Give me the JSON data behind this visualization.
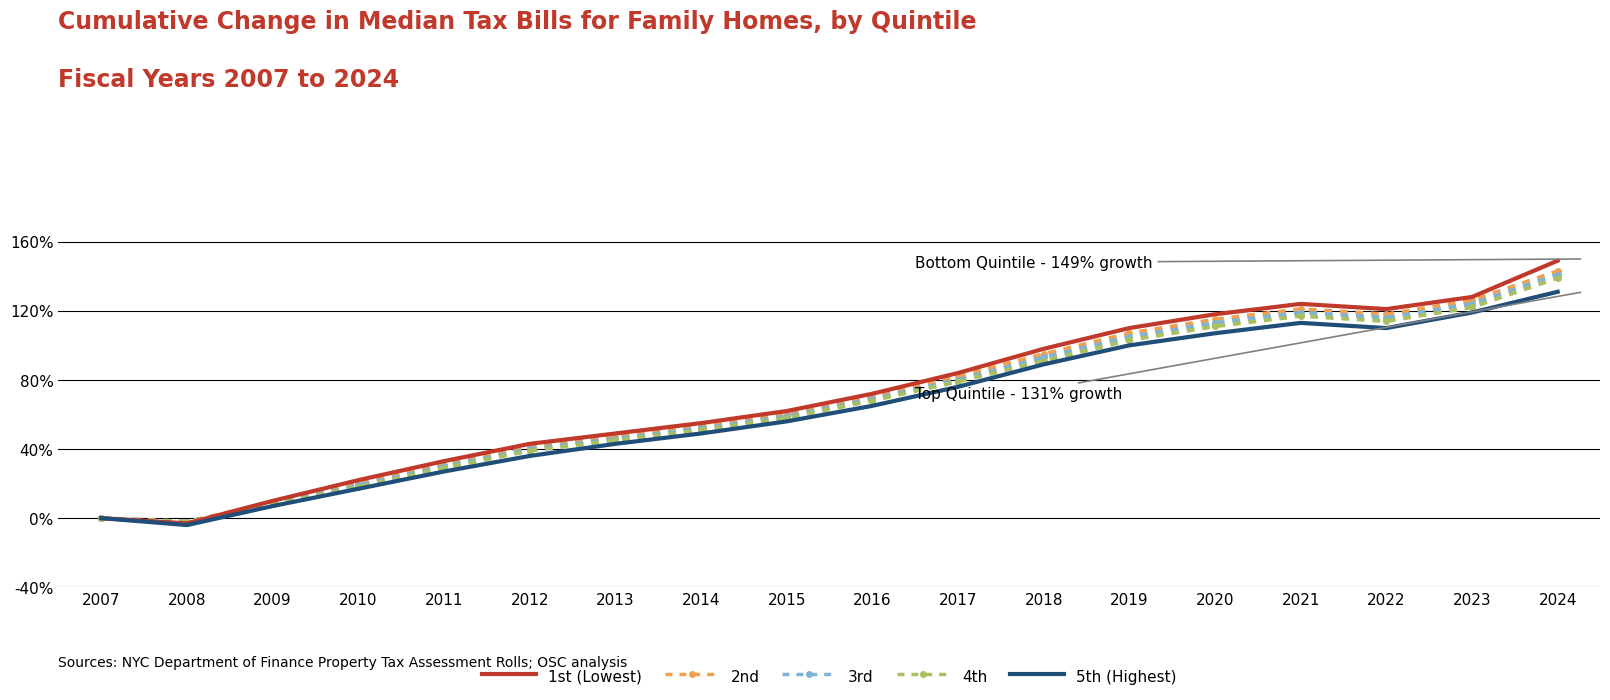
{
  "title_line1": "Cumulative Change in Median Tax Bills for Family Homes, by Quintile",
  "title_line2": "Fiscal Years 2007 to 2024",
  "title_color": "#c0392b",
  "source_text": "Sources: NYC Department of Finance Property Tax Assessment Rolls; OSC analysis",
  "years": [
    2007,
    2008,
    2009,
    2010,
    2011,
    2012,
    2013,
    2014,
    2015,
    2016,
    2017,
    2018,
    2019,
    2020,
    2021,
    2022,
    2023,
    2024
  ],
  "series": {
    "1st (Lowest)": {
      "color": "#c0392b",
      "linestyle": "solid",
      "linewidth": 3.0,
      "values": [
        0,
        -3,
        10,
        22,
        33,
        43,
        49,
        55,
        62,
        72,
        84,
        98,
        110,
        118,
        124,
        121,
        128,
        149
      ]
    },
    "2nd": {
      "color": "#f0a050",
      "linestyle": "dotted",
      "linewidth": 2.8,
      "values": [
        0,
        -2,
        9,
        20,
        31,
        41,
        47,
        53,
        60,
        70,
        82,
        95,
        107,
        115,
        121,
        118,
        126,
        143
      ]
    },
    "3rd": {
      "color": "#7fb3d3",
      "linestyle": "dotted",
      "linewidth": 2.8,
      "values": [
        0,
        -2,
        8,
        19,
        30,
        40,
        46,
        52,
        59,
        69,
        80,
        93,
        105,
        113,
        119,
        116,
        124,
        141
      ]
    },
    "4th": {
      "color": "#a8c060",
      "linestyle": "dotted",
      "linewidth": 2.8,
      "values": [
        0,
        -2,
        8,
        18,
        29,
        39,
        45,
        51,
        58,
        68,
        79,
        91,
        103,
        111,
        117,
        114,
        122,
        139
      ]
    },
    "5th (Highest)": {
      "color": "#1f4e79",
      "linestyle": "solid",
      "linewidth": 3.0,
      "values": [
        0,
        -4,
        7,
        17,
        27,
        36,
        43,
        49,
        56,
        65,
        76,
        89,
        100,
        107,
        113,
        110,
        119,
        131
      ]
    }
  },
  "ylim": [
    -40,
    175
  ],
  "yticks": [
    -40,
    0,
    40,
    80,
    120,
    160
  ],
  "ytick_labels": [
    "-40%",
    "0%",
    "40%",
    "80%",
    "120%",
    "160%"
  ],
  "background_color": "#ffffff",
  "legend_order": [
    "1st (Lowest)",
    "2nd",
    "3rd",
    "4th",
    "5th (Highest)"
  ]
}
